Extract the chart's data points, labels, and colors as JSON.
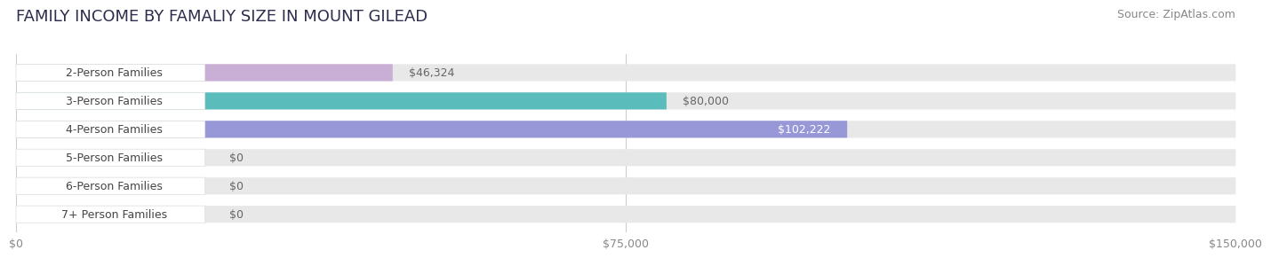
{
  "title": "FAMILY INCOME BY FAMALIY SIZE IN MOUNT GILEAD",
  "source": "Source: ZipAtlas.com",
  "categories": [
    "2-Person Families",
    "3-Person Families",
    "4-Person Families",
    "5-Person Families",
    "6-Person Families",
    "7+ Person Families"
  ],
  "values": [
    46324,
    80000,
    102222,
    0,
    0,
    0
  ],
  "bar_colors": [
    "#c9aed6",
    "#5bbcbc",
    "#9898d8",
    "#f4a0b8",
    "#f5c895",
    "#f0a898"
  ],
  "value_labels": [
    "$46,324",
    "$80,000",
    "$102,222",
    "$0",
    "$0",
    "$0"
  ],
  "value_label_inside": [
    false,
    false,
    true,
    false,
    false,
    false
  ],
  "x_ticks": [
    0,
    75000,
    150000
  ],
  "x_tick_labels": [
    "$0",
    "$75,000",
    "$150,000"
  ],
  "xlim": [
    0,
    150000
  ],
  "fig_bg": "#ffffff",
  "bar_bg_color": "#e8e8e8",
  "label_pill_color": "#f5f5f5",
  "title_fontsize": 13,
  "source_fontsize": 9,
  "label_fontsize": 9,
  "value_fontsize": 9,
  "tick_fontsize": 9
}
